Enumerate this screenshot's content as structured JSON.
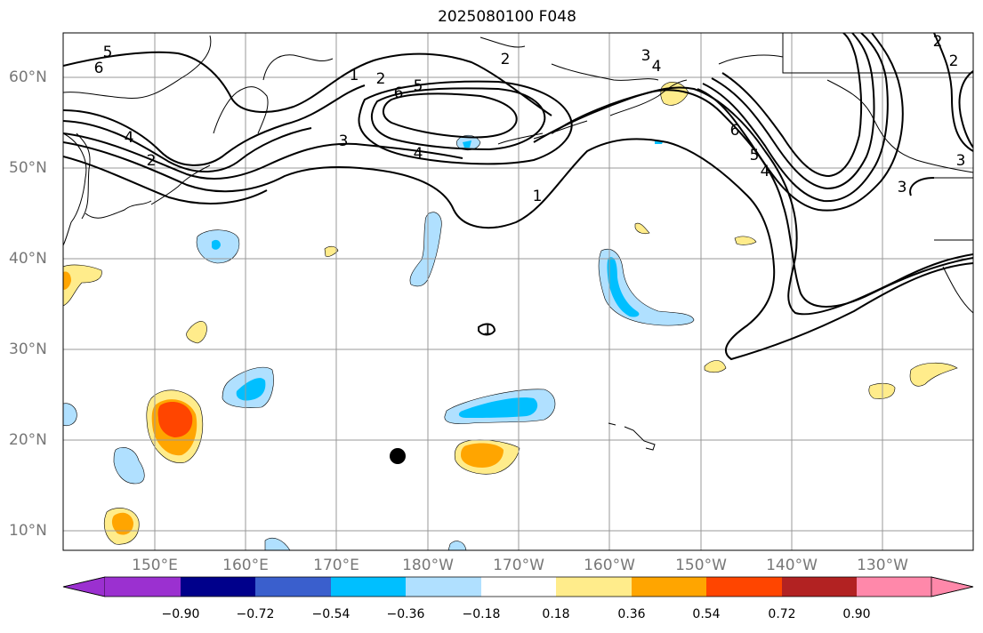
{
  "title": "2025080100 F048",
  "lat_labels": [
    "60°N",
    "50°N",
    "40°N",
    "30°N",
    "20°N",
    "10°N"
  ],
  "lon_labels": [
    "150°E",
    "160°E",
    "170°E",
    "180°W",
    "170°W",
    "160°W",
    "150°W",
    "140°W",
    "130°W"
  ],
  "colorbar": {
    "ticks": [
      "−0.90",
      "−0.72",
      "−0.54",
      "−0.36",
      "−0.18",
      "0.18",
      "0.36",
      "0.54",
      "0.72",
      "0.90"
    ],
    "colors": [
      "#9b30d0",
      "#00008b",
      "#3a5fcd",
      "#00bfff",
      "#b0e0ff",
      "#ffffff",
      "#ffec8b",
      "#ffa500",
      "#ff4500",
      "#b22222",
      "#ff88aa"
    ]
  },
  "contour_labels": [
    "5",
    "6",
    "4",
    "2",
    "1",
    "2",
    "6",
    "5",
    "3",
    "4",
    "1",
    "6",
    "5",
    "4",
    "3",
    "2",
    "2",
    "3",
    "1",
    "2",
    "4",
    "3"
  ],
  "marker": "black-dot"
}
